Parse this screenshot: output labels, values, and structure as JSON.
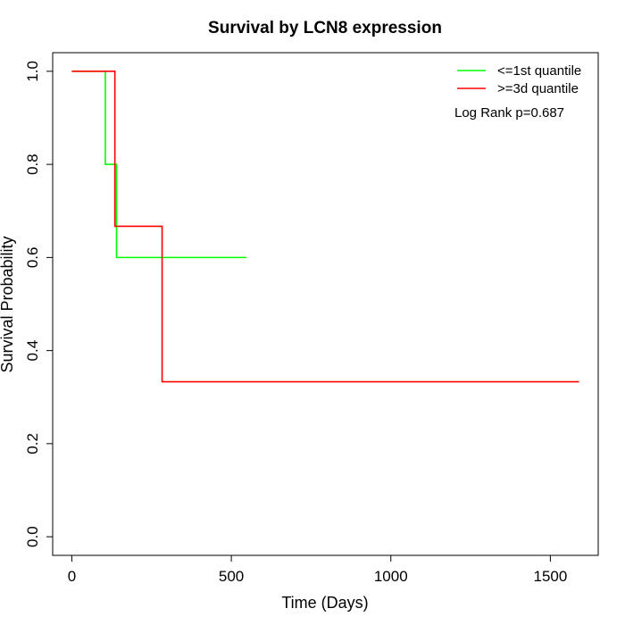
{
  "chart_data": {
    "type": "line",
    "step": true,
    "title": "Survival by LCN8 expression",
    "xlabel": "Time (Days)",
    "ylabel": "Survival Probability",
    "xlim": [
      -60,
      1650
    ],
    "ylim": [
      -0.04,
      1.04
    ],
    "x_ticks": [
      0,
      500,
      1000,
      1500
    ],
    "y_ticks": [
      0.0,
      0.2,
      0.4,
      0.6,
      0.8,
      1.0
    ],
    "x_tick_labels": [
      "0",
      "500",
      "1000",
      "1500"
    ],
    "y_tick_labels": [
      "0.0",
      "0.2",
      "0.4",
      "0.6",
      "0.8",
      "1.0"
    ],
    "grid": false,
    "legend_position": "top-right",
    "annotation": "Log Rank p=0.687",
    "series": [
      {
        "name": "<=1st quantile",
        "color": "#00ff00",
        "x": [
          0,
          105,
          140,
          548
        ],
        "y": [
          1.0,
          0.8,
          0.6,
          0.6
        ]
      },
      {
        "name": ">=3d quantile",
        "color": "#ff0000",
        "x": [
          0,
          135,
          283,
          1590
        ],
        "y": [
          1.0,
          0.667,
          0.333,
          0.333
        ]
      }
    ]
  }
}
